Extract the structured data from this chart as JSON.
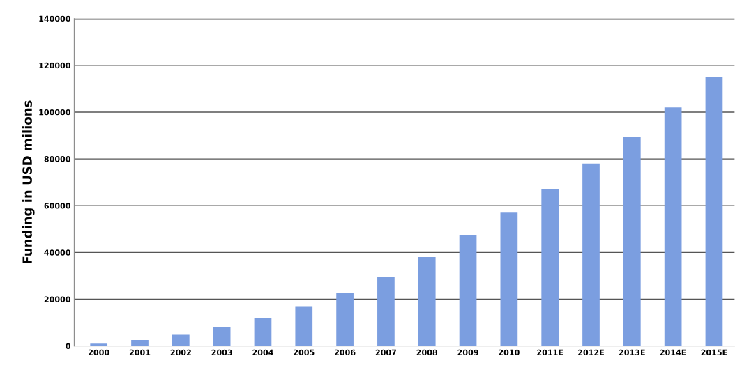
{
  "chart_data": {
    "type": "bar",
    "ylabel": "Funding in USD milions",
    "categories": [
      "2000",
      "2001",
      "2002",
      "2003",
      "2004",
      "2005",
      "2006",
      "2007",
      "2008",
      "2009",
      "2010",
      "2011E",
      "2012E",
      "2013E",
      "2014E",
      "2015E"
    ],
    "values": [
      1000,
      2600,
      4800,
      8000,
      12100,
      17000,
      22800,
      29500,
      38000,
      47500,
      57000,
      67000,
      78000,
      89500,
      102000,
      115000
    ],
    "color": "#7b9ee0",
    "ylim": [
      0,
      140000
    ],
    "yticks": [
      0,
      20000,
      40000,
      60000,
      80000,
      100000,
      120000,
      140000
    ],
    "grid": "y"
  }
}
